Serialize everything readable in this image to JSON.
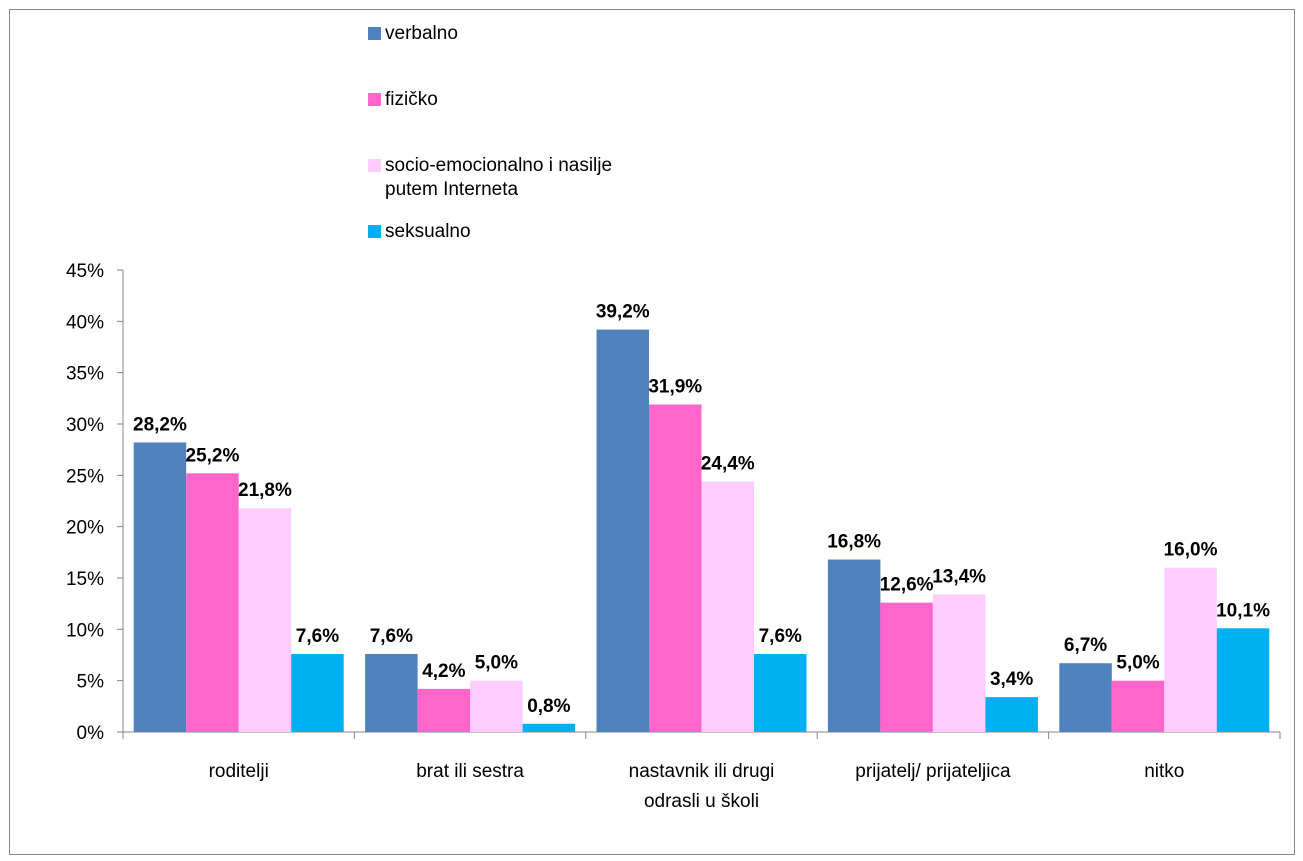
{
  "chart_data": {
    "type": "bar",
    "categories": [
      [
        "roditelji"
      ],
      [
        "brat ili sestra"
      ],
      [
        "nastavnik ili drugi",
        "odrasli u školi"
      ],
      [
        "prijatelj/ prijateljica"
      ],
      [
        "nitko"
      ]
    ],
    "series": [
      {
        "name": "verbalno",
        "color": "#4F81BD",
        "values": [
          28.2,
          7.6,
          39.2,
          16.8,
          6.7
        ],
        "labels": [
          "28,2%",
          "7,6%",
          "39,2%",
          "16,8%",
          "6,7%"
        ]
      },
      {
        "name": "fizičko",
        "color": "#FF66CC",
        "values": [
          25.2,
          4.2,
          31.9,
          12.6,
          5.0
        ],
        "labels": [
          "25,2%",
          "4,2%",
          "31,9%",
          "12,6%",
          "5,0%"
        ]
      },
      {
        "name": "socio-emocionalno i nasilje putem Interneta",
        "name_lines": [
          "socio-emocionalno i nasilje",
          "putem Interneta"
        ],
        "color": "#FFCCFF",
        "values": [
          21.8,
          5.0,
          24.4,
          13.4,
          16.0
        ],
        "labels": [
          "21,8%",
          "5,0%",
          "24,4%",
          "13,4%",
          "16,0%"
        ]
      },
      {
        "name": "seksualno",
        "color": "#00B0F0",
        "values": [
          7.6,
          0.8,
          7.6,
          3.4,
          10.1
        ],
        "labels": [
          "7,6%",
          "0,8%",
          "7,6%",
          "3,4%",
          "10,1%"
        ]
      }
    ],
    "yticks": [
      "0%",
      "5%",
      "10%",
      "15%",
      "20%",
      "25%",
      "30%",
      "35%",
      "40%",
      "45%"
    ],
    "ylim": [
      0,
      45
    ],
    "grid": false,
    "legend_position": "top"
  }
}
